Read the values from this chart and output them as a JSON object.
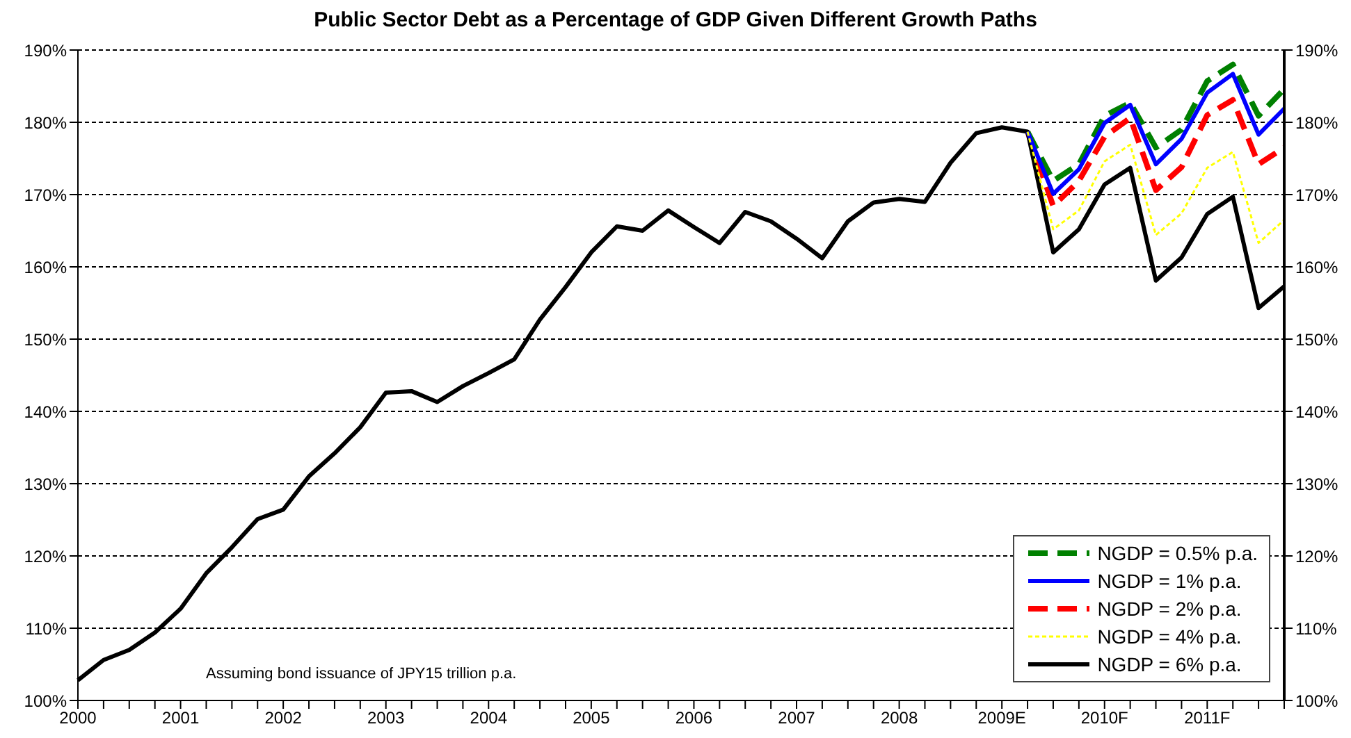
{
  "chart_data": {
    "type": "line",
    "title": "Public Sector Debt as a Percentage of GDP Given Different Growth Paths",
    "categories": [
      "2000",
      null,
      null,
      null,
      "2001",
      null,
      null,
      null,
      "2002",
      null,
      null,
      null,
      "2003",
      null,
      null,
      null,
      "2004",
      null,
      null,
      null,
      "2005",
      null,
      null,
      null,
      "2006",
      null,
      null,
      null,
      "2007",
      null,
      null,
      null,
      "2008",
      null,
      null,
      null,
      "2009E",
      null,
      null,
      null,
      "2010F",
      null,
      null,
      null,
      "2011F",
      null,
      null,
      null
    ],
    "series": [
      {
        "name": "NGDP = 0.5% p.a.",
        "color": "#008000",
        "line_style": "dashed",
        "values": [
          null,
          null,
          null,
          null,
          null,
          null,
          null,
          null,
          null,
          null,
          null,
          null,
          null,
          null,
          null,
          null,
          null,
          null,
          null,
          null,
          null,
          null,
          null,
          null,
          null,
          null,
          null,
          null,
          null,
          null,
          null,
          null,
          null,
          null,
          null,
          null,
          null,
          178.7,
          171.9,
          174.2,
          180.9,
          182.7,
          176.5,
          179.0,
          185.7,
          188.0,
          180.9,
          184.6
        ]
      },
      {
        "name": "NGDP = 1% p.a.",
        "color": "#0000ff",
        "line_style": "solid",
        "values": [
          null,
          null,
          null,
          null,
          null,
          null,
          null,
          null,
          null,
          null,
          null,
          null,
          null,
          null,
          null,
          null,
          null,
          null,
          null,
          null,
          null,
          null,
          null,
          null,
          null,
          null,
          null,
          null,
          null,
          null,
          null,
          null,
          null,
          null,
          null,
          null,
          null,
          178.7,
          170.1,
          173.5,
          179.9,
          182.4,
          174.2,
          177.7,
          184.1,
          186.7,
          178.3,
          181.9
        ]
      },
      {
        "name": "NGDP = 2% p.a.",
        "color": "#ff0000",
        "line_style": "dashed",
        "values": [
          null,
          null,
          null,
          null,
          null,
          null,
          null,
          null,
          null,
          null,
          null,
          null,
          null,
          null,
          null,
          null,
          null,
          null,
          null,
          null,
          null,
          null,
          null,
          null,
          null,
          null,
          null,
          null,
          null,
          null,
          null,
          null,
          null,
          null,
          null,
          null,
          null,
          178.7,
          168.4,
          171.9,
          178.0,
          180.6,
          170.6,
          173.8,
          181.0,
          183.1,
          174.2,
          176.5
        ]
      },
      {
        "name": "NGDP = 4% p.a.",
        "color": "#ffff00",
        "line_style": "dotted",
        "values": [
          null,
          null,
          null,
          null,
          null,
          null,
          null,
          null,
          null,
          null,
          null,
          null,
          null,
          null,
          null,
          null,
          null,
          null,
          null,
          null,
          null,
          null,
          null,
          null,
          null,
          null,
          null,
          null,
          null,
          null,
          null,
          null,
          null,
          null,
          null,
          null,
          null,
          178.7,
          165.2,
          167.8,
          174.6,
          176.9,
          164.4,
          167.4,
          173.7,
          175.9,
          163.3,
          166.5
        ]
      },
      {
        "name": "NGDP = 6% p.a.",
        "color": "#000000",
        "line_style": "solid",
        "values": [
          102.8,
          105.6,
          107.0,
          109.4,
          112.7,
          117.6,
          121.2,
          125.1,
          126.4,
          131.0,
          134.2,
          137.8,
          142.6,
          142.8,
          141.3,
          143.5,
          145.3,
          147.2,
          152.7,
          157.2,
          162.0,
          165.6,
          165.0,
          167.8,
          165.5,
          163.3,
          167.6,
          166.3,
          163.9,
          161.2,
          166.3,
          168.9,
          169.4,
          169.0,
          174.4,
          178.5,
          179.3,
          178.7,
          162.0,
          165.2,
          171.4,
          173.7,
          158.1,
          161.3,
          167.3,
          169.7,
          154.3,
          157.3
        ]
      }
    ],
    "ylim": [
      100,
      190
    ],
    "yticks": [
      {
        "value": 100,
        "label": "100%"
      },
      {
        "value": 110,
        "label": "110%"
      },
      {
        "value": 120,
        "label": "120%"
      },
      {
        "value": 130,
        "label": "130%"
      },
      {
        "value": 140,
        "label": "140%"
      },
      {
        "value": 150,
        "label": "150%"
      },
      {
        "value": 160,
        "label": "160%"
      },
      {
        "value": 170,
        "label": "170%"
      },
      {
        "value": 180,
        "label": "180%"
      },
      {
        "value": 190,
        "label": "190%"
      }
    ],
    "y2lim": [
      100,
      190
    ],
    "y2ticks": [
      {
        "value": 100,
        "label": "100%"
      },
      {
        "value": 110,
        "label": "110%"
      },
      {
        "value": 120,
        "label": "120%"
      },
      {
        "value": 130,
        "label": "130%"
      },
      {
        "value": 140,
        "label": "140%"
      },
      {
        "value": 150,
        "label": "150%"
      },
      {
        "value": 160,
        "label": "160%"
      },
      {
        "value": 170,
        "label": "170%"
      },
      {
        "value": 180,
        "label": "180%"
      },
      {
        "value": 190,
        "label": "190%"
      }
    ],
    "grid": "y",
    "legend": "bottom right",
    "marker": "none",
    "annotations": [
      "Assuming bond issuance of JPY15 trillion p.a."
    ]
  }
}
